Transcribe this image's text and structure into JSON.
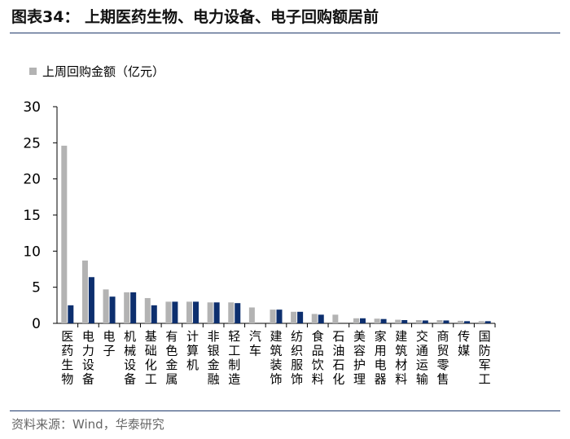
{
  "header": {
    "title": "图表34： 上期医药生物、电力设备、电子回购额居前"
  },
  "footer": {
    "source": "资料来源：Wind，华泰研究"
  },
  "colors": {
    "series1": "#b3b3b3",
    "series2": "#0d2f6e",
    "rule": "#1f3a6b"
  },
  "chart_data": {
    "type": "bar",
    "ylim": [
      0,
      30
    ],
    "yticks": [
      0,
      5,
      10,
      15,
      20,
      25,
      30
    ],
    "grid": false,
    "legend_position": "top-left",
    "categories": [
      "医药生物",
      "电力设备",
      "电子",
      "机械设备",
      "基础化工",
      "有色金属",
      "计算机",
      "非银金融",
      "轻工制造",
      "汽车",
      "建筑装饰",
      "纺织服饰",
      "食品饮料",
      "石油石化",
      "美容护理",
      "家用电器",
      "建筑材料",
      "交通运输",
      "商贸零售",
      "传媒",
      "国防军工"
    ],
    "series": [
      {
        "name": "上周回购金额（亿元）",
        "values": [
          24.6,
          8.7,
          4.7,
          4.3,
          3.5,
          3.0,
          3.0,
          2.9,
          2.9,
          2.2,
          1.9,
          1.6,
          1.3,
          1.2,
          0.7,
          0.65,
          0.5,
          0.45,
          0.45,
          0.35,
          0.3
        ]
      },
      {
        "name": "",
        "values": [
          2.5,
          6.4,
          3.7,
          4.3,
          2.5,
          3.0,
          3.0,
          2.9,
          2.8,
          0,
          1.9,
          1.6,
          1.2,
          0,
          0.7,
          0.6,
          0.45,
          0.4,
          0.4,
          0.3,
          0.3
        ]
      }
    ]
  }
}
